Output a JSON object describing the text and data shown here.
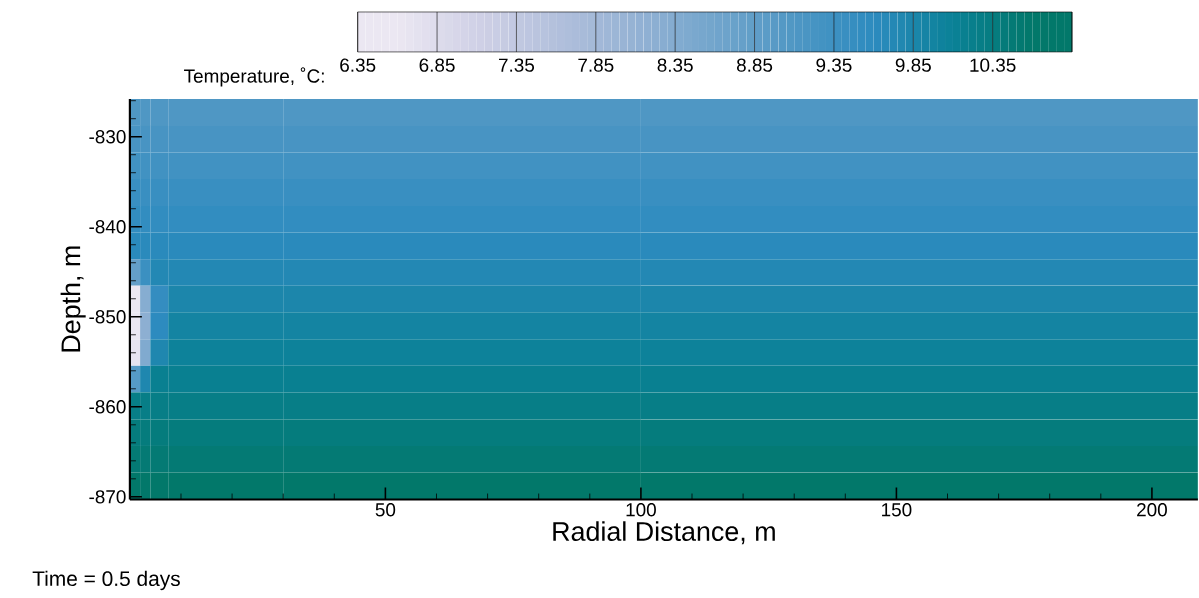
{
  "chart_data": {
    "type": "heatmap",
    "xlabel": "Radial Distance, m",
    "ylabel": "Depth, m",
    "clabel": "Temperature, ˚C:",
    "annotations": [
      "Time = 0.5 days"
    ],
    "x": [
      1,
      3,
      5,
      10,
      50,
      150
    ],
    "y": [
      -827.3,
      -830.3,
      -833.2,
      -836.2,
      -839.2,
      -842.1,
      -845.1,
      -848.0,
      -851.0,
      -854.0,
      -856.9,
      -859.9,
      -862.9,
      -865.8,
      -868.8
    ],
    "cells": [
      [
        9.1,
        9.1,
        9.1,
        9.1,
        9.1,
        9.1
      ],
      [
        9.21,
        9.21,
        9.21,
        9.21,
        9.21,
        9.21
      ],
      [
        9.31,
        9.31,
        9.31,
        9.31,
        9.31,
        9.31
      ],
      [
        9.42,
        9.42,
        9.42,
        9.42,
        9.42,
        9.42
      ],
      [
        9.53,
        9.53,
        9.53,
        9.53,
        9.53,
        9.53
      ],
      [
        9.64,
        9.64,
        9.64,
        9.64,
        9.64,
        9.64
      ],
      [
        8.8,
        9.4,
        9.74,
        9.74,
        9.74,
        9.74
      ],
      [
        6.6,
        8.3,
        9.5,
        9.85,
        9.85,
        9.85
      ],
      [
        6.5,
        8.2,
        9.6,
        9.96,
        9.96,
        9.96
      ],
      [
        6.7,
        8.4,
        9.8,
        10.06,
        10.06,
        10.06
      ],
      [
        9.0,
        9.8,
        10.17,
        10.17,
        10.17,
        10.17
      ],
      [
        10.28,
        10.28,
        10.28,
        10.28,
        10.28,
        10.28
      ],
      [
        10.39,
        10.39,
        10.39,
        10.39,
        10.39,
        10.39
      ],
      [
        10.49,
        10.49,
        10.49,
        10.49,
        10.49,
        10.49
      ],
      [
        10.6,
        10.6,
        10.6,
        10.6,
        10.6,
        10.6
      ]
    ],
    "colors": [
      "#ebe7f2",
      "#d0d1e6",
      "#b3c0dc",
      "#94b2d4",
      "#72a5cc",
      "#4f97c4",
      "#2d8bbf",
      "#0a8197",
      "#02786a"
    ],
    "clim": [
      6.35,
      10.85
    ],
    "cticks": [
      6.35,
      6.85,
      7.35,
      7.85,
      8.35,
      8.85,
      9.35,
      9.85,
      10.35,
      {
        "value": 10.85,
        "label": null
      }
    ],
    "xlim": [
      0,
      209
    ],
    "xticks": [
      {
        "value": 10,
        "label": null
      },
      {
        "value": 20,
        "label": null
      },
      {
        "value": 30,
        "label": null
      },
      {
        "value": 40,
        "label": null
      },
      50,
      {
        "value": 60,
        "label": null
      },
      {
        "value": 70,
        "label": null
      },
      {
        "value": 80,
        "label": null
      },
      {
        "value": 90,
        "label": null
      },
      100,
      {
        "value": 110,
        "label": null
      },
      {
        "value": 120,
        "label": null
      },
      {
        "value": 130,
        "label": null
      },
      {
        "value": 140,
        "label": null
      },
      150,
      {
        "value": 160,
        "label": null
      },
      {
        "value": 170,
        "label": null
      },
      {
        "value": 180,
        "label": null
      },
      {
        "value": 190,
        "label": null
      },
      200
    ],
    "ylim": [
      -870.3,
      -825.8
    ],
    "yticks": [
      -870,
      {
        "value": -868,
        "label": null
      },
      {
        "value": -866,
        "label": null
      },
      {
        "value": -864,
        "label": null
      },
      {
        "value": -862,
        "label": null
      },
      -860,
      {
        "value": -858,
        "label": null
      },
      {
        "value": -856,
        "label": null
      },
      {
        "value": -854,
        "label": null
      },
      {
        "value": -852,
        "label": null
      },
      -850,
      {
        "value": -848,
        "label": null
      },
      {
        "value": -846,
        "label": null
      },
      {
        "value": -844,
        "label": null
      },
      {
        "value": -842,
        "label": null
      },
      -840,
      {
        "value": -838,
        "label": null
      },
      {
        "value": -836,
        "label": null
      },
      {
        "value": -834,
        "label": null
      },
      {
        "value": -832,
        "label": null
      },
      -830,
      {
        "value": -828,
        "label": null
      },
      {
        "value": -826,
        "label": null
      }
    ]
  }
}
